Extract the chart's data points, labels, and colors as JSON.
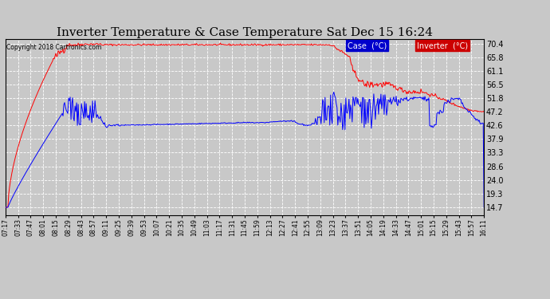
{
  "title": "Inverter Temperature & Case Temperature Sat Dec 15 16:24",
  "copyright": "Copyright 2018 Cartronics.com",
  "legend_labels": [
    "Case  (°C)",
    "Inverter  (°C)"
  ],
  "legend_box_colors": [
    "#0000cc",
    "#cc0000"
  ],
  "legend_text_colors": [
    "white",
    "white"
  ],
  "yticks": [
    14.7,
    19.3,
    24.0,
    28.6,
    33.3,
    37.9,
    42.6,
    47.2,
    51.8,
    56.5,
    61.1,
    65.8,
    70.4
  ],
  "ylim": [
    12.0,
    72.0
  ],
  "background_color": "#c8c8c8",
  "plot_bg_color": "#c8c8c8",
  "grid_color": "white",
  "title_fontsize": 11,
  "copyright_fontsize": 6,
  "x_labels": [
    "07:17",
    "07:33",
    "07:47",
    "08:01",
    "08:15",
    "08:29",
    "08:43",
    "08:57",
    "09:11",
    "09:25",
    "09:39",
    "09:53",
    "10:07",
    "10:21",
    "10:35",
    "10:49",
    "11:03",
    "11:17",
    "11:31",
    "11:45",
    "11:59",
    "12:13",
    "12:27",
    "12:41",
    "12:55",
    "13:09",
    "13:23",
    "13:37",
    "13:51",
    "14:05",
    "14:19",
    "14:33",
    "14:47",
    "15:01",
    "15:15",
    "15:29",
    "15:43",
    "15:57",
    "16:11"
  ]
}
